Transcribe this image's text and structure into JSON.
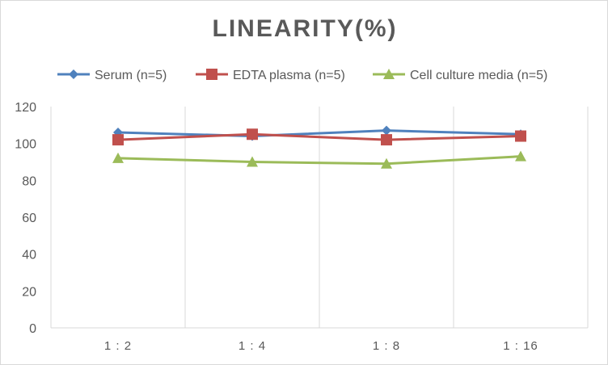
{
  "chart_data": {
    "type": "line",
    "title": "LINEARITY(%)",
    "xlabel": "",
    "ylabel": "",
    "categories": [
      "1:2",
      "1:4",
      "1:8",
      "1:16"
    ],
    "ylim": [
      0,
      120
    ],
    "yticks": [
      0,
      20,
      40,
      60,
      80,
      100,
      120
    ],
    "grid": "vertical",
    "legend_position": "top",
    "series": [
      {
        "name": "Serum (n=5)",
        "values": [
          106,
          104,
          107,
          105
        ],
        "color": "#4f81bd",
        "marker": "diamond"
      },
      {
        "name": "EDTA plasma (n=5)",
        "values": [
          102,
          105,
          102,
          104
        ],
        "color": "#c0504d",
        "marker": "square"
      },
      {
        "name": "Cell culture media (n=5)",
        "values": [
          92,
          90,
          89,
          93
        ],
        "color": "#9bbb59",
        "marker": "triangle"
      }
    ]
  }
}
